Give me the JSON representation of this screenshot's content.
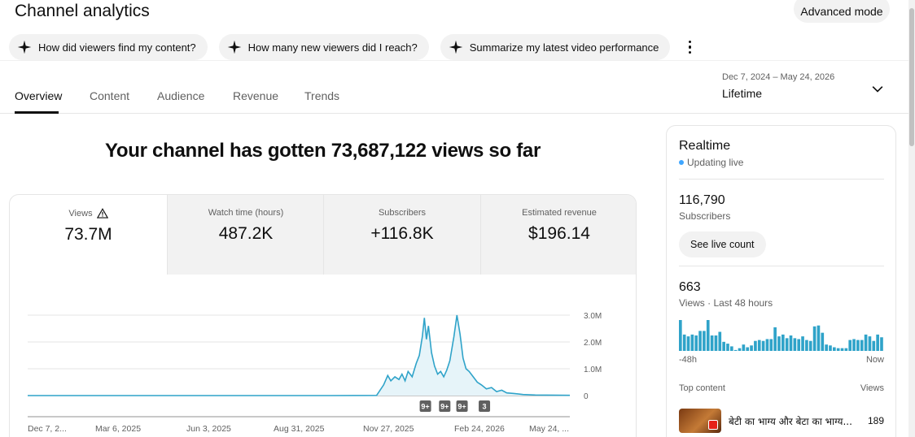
{
  "header": {
    "title": "Channel analytics",
    "advanced_mode_label": "Advanced mode"
  },
  "chips": [
    {
      "label": "How did viewers find my content?",
      "icon": "sparkle-icon"
    },
    {
      "label": "How many new viewers did I reach?",
      "icon": "sparkle-icon"
    },
    {
      "label": "Summarize my latest video performance",
      "icon": "sparkle-icon"
    }
  ],
  "tabs": [
    {
      "label": "Overview",
      "active": true
    },
    {
      "label": "Content"
    },
    {
      "label": "Audience"
    },
    {
      "label": "Revenue"
    },
    {
      "label": "Trends"
    }
  ],
  "date_picker": {
    "range": "Dec 7, 2024 – May 24, 2026",
    "label": "Lifetime"
  },
  "headline": "Your channel has gotten 73,687,122 views so far",
  "metrics": [
    {
      "label": "Views",
      "value": "73.7M",
      "warning": true
    },
    {
      "label": "Watch time (hours)",
      "value": "487.2K"
    },
    {
      "label": "Subscribers",
      "value": "+116.8K"
    },
    {
      "label": "Estimated revenue",
      "value": "$196.14"
    }
  ],
  "chart_data": {
    "type": "area",
    "title": "",
    "xlabel": "",
    "ylabel": "",
    "ylim": [
      0,
      3000000
    ],
    "y_ticks": [
      "3.0M",
      "2.0M",
      "1.0M",
      "0"
    ],
    "x_ticks": [
      "Dec 7, 2...",
      "Mar 6, 2025",
      "Jun 3, 2025",
      "Aug 31, 2025",
      "Nov 27, 2025",
      "Feb 24, 2026",
      "May 24, ..."
    ],
    "series_color": "#2fa3c9",
    "points": [
      [
        "2024-12-07",
        0
      ],
      [
        "2025-10-01",
        0
      ],
      [
        "2025-11-15",
        5000
      ],
      [
        "2025-11-22",
        400000
      ],
      [
        "2025-11-26",
        750000
      ],
      [
        "2025-11-29",
        550000
      ],
      [
        "2025-12-03",
        700000
      ],
      [
        "2025-12-07",
        600000
      ],
      [
        "2025-12-10",
        800000
      ],
      [
        "2025-12-13",
        550000
      ],
      [
        "2025-12-16",
        900000
      ],
      [
        "2025-12-20",
        700000
      ],
      [
        "2025-12-24",
        1200000
      ],
      [
        "2025-12-27",
        1500000
      ],
      [
        "2025-12-30",
        2200000
      ],
      [
        "2026-01-01",
        2900000
      ],
      [
        "2026-01-03",
        2100000
      ],
      [
        "2026-01-05",
        2600000
      ],
      [
        "2026-01-08",
        1600000
      ],
      [
        "2026-01-11",
        1100000
      ],
      [
        "2026-01-14",
        800000
      ],
      [
        "2026-01-17",
        900000
      ],
      [
        "2026-01-20",
        700000
      ],
      [
        "2026-01-23",
        950000
      ],
      [
        "2026-01-26",
        1300000
      ],
      [
        "2026-01-30",
        2200000
      ],
      [
        "2026-02-02",
        3000000
      ],
      [
        "2026-02-05",
        2300000
      ],
      [
        "2026-02-08",
        1400000
      ],
      [
        "2026-02-11",
        1000000
      ],
      [
        "2026-02-14",
        900000
      ],
      [
        "2026-02-18",
        700000
      ],
      [
        "2026-02-22",
        500000
      ],
      [
        "2026-02-26",
        400000
      ],
      [
        "2026-03-03",
        250000
      ],
      [
        "2026-03-08",
        300000
      ],
      [
        "2026-03-13",
        150000
      ],
      [
        "2026-03-18",
        200000
      ],
      [
        "2026-03-23",
        100000
      ],
      [
        "2026-03-30",
        80000
      ],
      [
        "2026-04-08",
        40000
      ],
      [
        "2026-04-20",
        20000
      ],
      [
        "2026-05-24",
        10000
      ]
    ],
    "markers": [
      {
        "label": "9+",
        "date": "2026-01-02"
      },
      {
        "label": "9+",
        "date": "2026-01-21"
      },
      {
        "label": "9+",
        "date": "2026-02-07"
      },
      {
        "label": "3",
        "date": "2026-03-01"
      }
    ]
  },
  "realtime": {
    "title": "Realtime",
    "status": "Updating live",
    "subscribers_value": "116,790",
    "subscribers_label": "Subscribers",
    "see_live_label": "See live count",
    "views_value": "663",
    "views_label": "Views · Last 48 hours",
    "axis_start": "-48h",
    "axis_end": "Now",
    "bars": [
      34,
      18,
      16,
      18,
      17,
      22,
      22,
      34,
      17,
      17,
      21,
      10,
      8,
      5,
      1,
      3,
      7,
      4,
      6,
      11,
      12,
      11,
      13,
      13,
      26,
      16,
      18,
      14,
      17,
      14,
      13,
      16,
      12,
      11,
      27,
      28,
      20,
      7,
      6,
      4,
      3,
      3,
      3,
      12,
      13,
      12,
      12,
      18,
      16,
      11,
      18,
      15
    ],
    "top_content_label": "Top content",
    "views_col_label": "Views",
    "top_items": [
      {
        "title": "बेटी का भाग्य और बेटा का भाग्य...",
        "views": "189"
      }
    ]
  }
}
